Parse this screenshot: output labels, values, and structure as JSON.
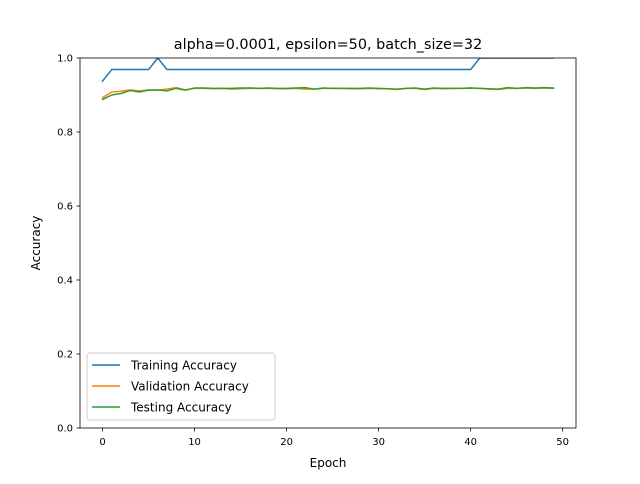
{
  "chart_data": {
    "type": "line",
    "title": "alpha=0.0001, epsilon=50, batch_size=32",
    "xlabel": "Epoch",
    "ylabel": "Accuracy",
    "xlim": [
      -2.45,
      51.45
    ],
    "ylim": [
      0.0,
      1.0
    ],
    "xticks": [
      0,
      10,
      20,
      30,
      40,
      50
    ],
    "yticks": [
      0.0,
      0.2,
      0.4,
      0.6,
      0.8,
      1.0
    ],
    "xtick_labels": [
      "0",
      "10",
      "20",
      "30",
      "40",
      "50"
    ],
    "ytick_labels": [
      "0.0",
      "0.2",
      "0.4",
      "0.6",
      "0.8",
      "1.0"
    ],
    "grid": false,
    "legend_position": "lower-left",
    "x": [
      0,
      1,
      2,
      3,
      4,
      5,
      6,
      7,
      8,
      9,
      10,
      11,
      12,
      13,
      14,
      15,
      16,
      17,
      18,
      19,
      20,
      21,
      22,
      23,
      24,
      25,
      26,
      27,
      28,
      29,
      30,
      31,
      32,
      33,
      34,
      35,
      36,
      37,
      38,
      39,
      40,
      41,
      42,
      43,
      44,
      45,
      46,
      47,
      48,
      49
    ],
    "series": [
      {
        "name": "Training Accuracy",
        "color": "#1f77b4",
        "values": [
          0.9375,
          0.96875,
          0.96875,
          0.96875,
          0.96875,
          0.96875,
          1.0,
          0.96875,
          0.96875,
          0.96875,
          0.96875,
          0.96875,
          0.96875,
          0.96875,
          0.96875,
          0.96875,
          0.96875,
          0.96875,
          0.96875,
          0.96875,
          0.96875,
          0.96875,
          0.96875,
          0.96875,
          0.96875,
          0.96875,
          0.96875,
          0.96875,
          0.96875,
          0.96875,
          0.96875,
          0.96875,
          0.96875,
          0.96875,
          0.96875,
          0.96875,
          0.96875,
          0.96875,
          0.96875,
          0.96875,
          0.96875,
          1.0,
          1.0,
          1.0,
          1.0,
          1.0,
          1.0,
          1.0,
          1.0,
          1.0
        ]
      },
      {
        "name": "Validation Accuracy",
        "color": "#ff7f0e",
        "values": [
          0.893,
          0.908,
          0.91,
          0.914,
          0.911,
          0.914,
          0.913,
          0.916,
          0.92,
          0.914,
          0.918,
          0.918,
          0.917,
          0.918,
          0.916,
          0.917,
          0.918,
          0.918,
          0.918,
          0.917,
          0.917,
          0.918,
          0.916,
          0.916,
          0.918,
          0.918,
          0.918,
          0.917,
          0.917,
          0.918,
          0.917,
          0.917,
          0.915,
          0.918,
          0.918,
          0.915,
          0.918,
          0.917,
          0.918,
          0.918,
          0.919,
          0.918,
          0.916,
          0.915,
          0.918,
          0.918,
          0.919,
          0.918,
          0.919,
          0.918
        ]
      },
      {
        "name": "Testing Accuracy",
        "color": "#2ca02c",
        "values": [
          0.888,
          0.9,
          0.904,
          0.912,
          0.908,
          0.913,
          0.914,
          0.911,
          0.918,
          0.913,
          0.919,
          0.919,
          0.918,
          0.918,
          0.918,
          0.919,
          0.919,
          0.918,
          0.919,
          0.918,
          0.918,
          0.919,
          0.92,
          0.916,
          0.919,
          0.918,
          0.918,
          0.918,
          0.918,
          0.919,
          0.918,
          0.917,
          0.916,
          0.918,
          0.919,
          0.916,
          0.919,
          0.918,
          0.918,
          0.918,
          0.919,
          0.918,
          0.917,
          0.916,
          0.92,
          0.918,
          0.92,
          0.919,
          0.92,
          0.919
        ]
      }
    ]
  }
}
